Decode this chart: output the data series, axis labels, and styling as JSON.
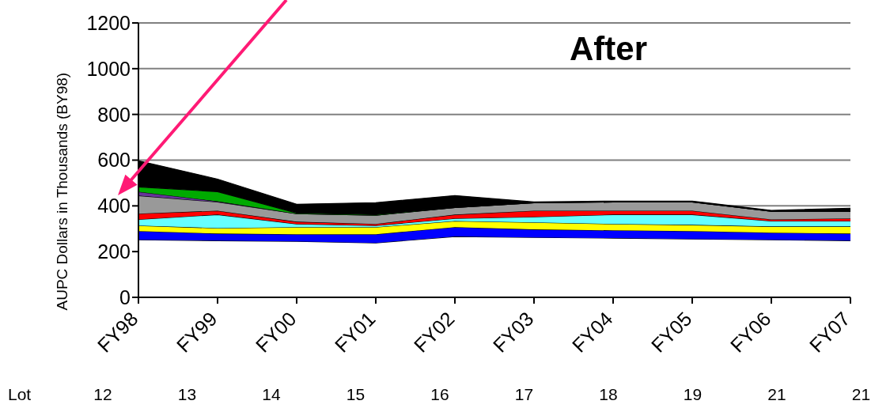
{
  "chart_data": {
    "type": "area",
    "stacked": true,
    "title": "After",
    "ylabel": "AUPC Dollars in Thousands (BY98)",
    "categories": [
      "FY98",
      "FY99",
      "FY00",
      "FY01",
      "FY02",
      "FY03",
      "FY04",
      "FY05",
      "FY06",
      "FY07"
    ],
    "series": [
      {
        "color": "#ffffff",
        "values": [
          252,
          248,
          245,
          238,
          266,
          262,
          259,
          255,
          252,
          248
        ]
      },
      {
        "color": "#0000ff",
        "values": [
          38,
          31,
          31,
          38,
          41,
          35,
          34,
          35,
          31,
          31
        ]
      },
      {
        "color": "#ffff00",
        "values": [
          24,
          24,
          31,
          31,
          27,
          31,
          28,
          27,
          27,
          31
        ]
      },
      {
        "color": "#66ffff",
        "values": [
          27,
          59,
          14,
          7,
          11,
          24,
          41,
          45,
          24,
          24
        ]
      },
      {
        "color": "#ff0000",
        "values": [
          25,
          17,
          10,
          7,
          17,
          27,
          17,
          17,
          7,
          11
        ]
      },
      {
        "color": "#999999",
        "values": [
          79,
          38,
          35,
          38,
          31,
          35,
          38,
          38,
          35,
          31
        ]
      },
      {
        "color": "#663399",
        "values": [
          17,
          3,
          0,
          0,
          0,
          0,
          0,
          0,
          0,
          0
        ]
      },
      {
        "color": "#00aa00",
        "values": [
          21,
          42,
          3,
          3,
          0,
          0,
          0,
          0,
          0,
          0
        ]
      },
      {
        "color": "#000000",
        "values": [
          114,
          55,
          38,
          52,
          52,
          3,
          4,
          4,
          4,
          14
        ]
      }
    ],
    "ylim": [
      0,
      1200
    ],
    "yticks": [
      0,
      200,
      400,
      600,
      800,
      1000,
      1200
    ],
    "grid": "y",
    "annotations": [
      "Lot",
      "12",
      "13",
      "14",
      "15",
      "16",
      "17",
      "18",
      "19",
      "21",
      "21"
    ]
  }
}
